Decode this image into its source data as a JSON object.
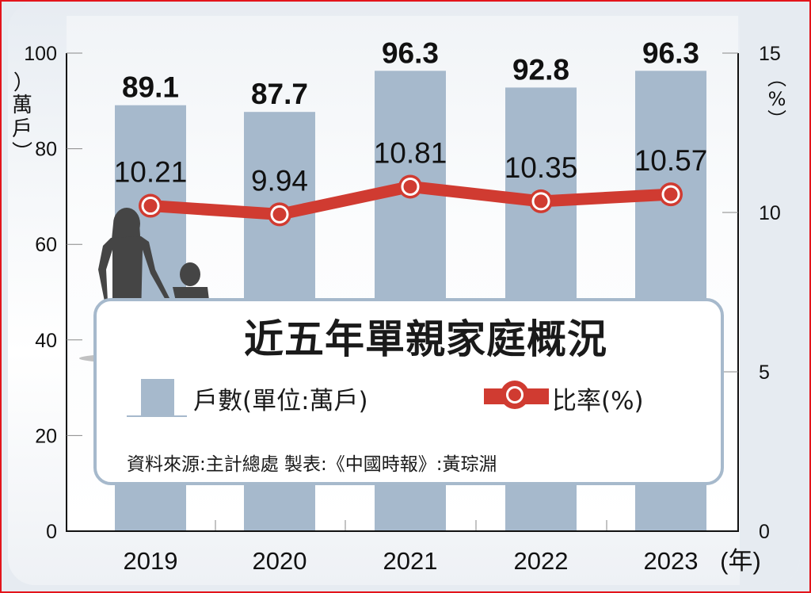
{
  "chart_data": {
    "type": "bar+line",
    "title": "近五年單親家庭概況",
    "categories": [
      "2019",
      "2020",
      "2021",
      "2022",
      "2023"
    ],
    "series": [
      {
        "name": "戶數(單位:萬戶)",
        "type": "bar",
        "axis": "left",
        "color": "#a6b9cc",
        "values": [
          89.1,
          87.7,
          96.3,
          92.8,
          96.3
        ]
      },
      {
        "name": "比率(%)",
        "type": "line",
        "axis": "right",
        "color": "#d03b31",
        "values": [
          10.21,
          9.94,
          10.81,
          10.35,
          10.57
        ]
      }
    ],
    "xlabel": "(年)",
    "ylabel_left": "(萬戶)",
    "ylabel_right": "(%)",
    "ylim_left": [
      0,
      100
    ],
    "ylim_right": [
      0,
      15
    ],
    "yticks_left": [
      0,
      20,
      40,
      60,
      80,
      100
    ],
    "yticks_right": [
      0,
      5,
      10,
      15
    ],
    "grid": false,
    "legend_position": "center panel"
  },
  "labels": {
    "title": "近五年單親家庭概況",
    "legend_bar": "戶數(單位:萬戶)",
    "legend_line": "比率(%)",
    "source": "資料來源:主計總處  製表:《中國時報》:黃琮淵",
    "unit_left": "(萬戶)",
    "unit_right": "(%)",
    "x_unit": "(年)",
    "bar_labels": [
      "89.1",
      "87.7",
      "96.3",
      "92.8",
      "96.3"
    ],
    "line_labels": [
      "10.21",
      "9.94",
      "10.81",
      "10.35",
      "10.57"
    ],
    "years": [
      "2019",
      "2020",
      "2021",
      "2022",
      "2023"
    ],
    "yticks_left": [
      "0",
      "20",
      "40",
      "60",
      "80",
      "100"
    ],
    "yticks_right": [
      "0",
      "5",
      "10",
      "15"
    ]
  },
  "colors": {
    "bar": "#a6b9cc",
    "line": "#d03b31",
    "border": "#e3141b",
    "silhouette": "#454545"
  }
}
